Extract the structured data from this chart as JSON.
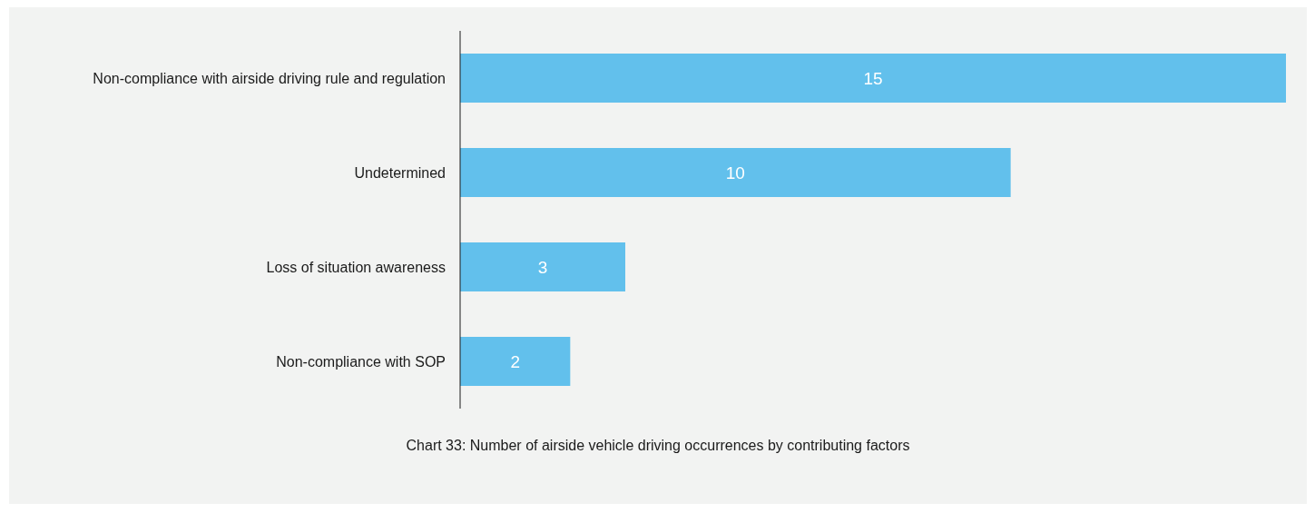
{
  "chart_data": {
    "type": "bar",
    "orientation": "horizontal",
    "categories": [
      "Non-compliance with airside driving rule and regulation",
      "Undetermined",
      "Loss of situation awareness",
      "Non-compliance with SOP"
    ],
    "values": [
      15,
      10,
      3,
      2
    ],
    "color": "#62c0ec",
    "data_labels": true,
    "annotations": [
      "Chart 33: Number of airside vehicle driving occurrences by contributing factors"
    ]
  }
}
